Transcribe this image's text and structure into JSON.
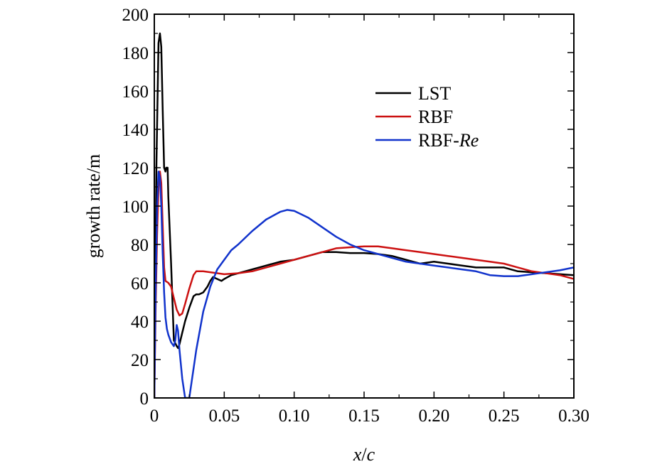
{
  "chart_data": {
    "type": "line",
    "title": "",
    "xlabel_parts": [
      {
        "text": "x",
        "italic": true
      },
      {
        "text": "/",
        "italic": false
      },
      {
        "text": "c",
        "italic": true
      }
    ],
    "ylabel": "growth rate/m",
    "xlim": [
      0,
      0.3
    ],
    "ylim": [
      0,
      200
    ],
    "xticks": [
      0,
      0.05,
      0.1,
      0.15,
      0.2,
      0.25,
      0.3
    ],
    "xtick_labels": [
      "0",
      "0.05",
      "0.10",
      "0.15",
      "0.20",
      "0.25",
      "0.30"
    ],
    "yticks": [
      0,
      20,
      40,
      60,
      80,
      100,
      120,
      140,
      160,
      180,
      200
    ],
    "ytick_labels": [
      "0",
      "20",
      "40",
      "60",
      "80",
      "100",
      "120",
      "140",
      "160",
      "180",
      "200"
    ],
    "grid": false,
    "legend_position": "top-right",
    "series": [
      {
        "name": "LST",
        "label_parts": [
          {
            "text": "LST",
            "italic": false
          }
        ],
        "color": "#000000",
        "x": [
          0.0,
          0.0015,
          0.003,
          0.004,
          0.005,
          0.006,
          0.007,
          0.008,
          0.0085,
          0.0095,
          0.01,
          0.012,
          0.014,
          0.016,
          0.017,
          0.018,
          0.02,
          0.022,
          0.025,
          0.028,
          0.03,
          0.032,
          0.035,
          0.038,
          0.04,
          0.042,
          0.045,
          0.048,
          0.05,
          0.055,
          0.06,
          0.07,
          0.08,
          0.09,
          0.1,
          0.11,
          0.12,
          0.13,
          0.14,
          0.15,
          0.16,
          0.17,
          0.18,
          0.19,
          0.2,
          0.21,
          0.22,
          0.23,
          0.24,
          0.25,
          0.26,
          0.27,
          0.28,
          0.29,
          0.3
        ],
        "y": [
          0,
          120,
          185,
          190,
          183,
          150,
          120,
          118,
          120,
          120,
          105,
          70,
          30,
          27,
          26,
          28,
          34,
          40,
          47,
          53,
          54,
          54,
          55,
          58,
          61,
          63,
          62,
          61,
          62,
          64,
          65,
          67,
          69,
          71,
          72,
          74,
          76,
          76,
          75.5,
          75.5,
          75,
          74,
          72,
          70,
          71,
          70,
          69,
          68,
          68,
          68,
          66,
          65.5,
          65,
          64.5,
          64
        ]
      },
      {
        "name": "RBF",
        "label_parts": [
          {
            "text": "RBF",
            "italic": false
          }
        ],
        "color": "#cc1111",
        "x": [
          0.0,
          0.001,
          0.002,
          0.003,
          0.004,
          0.005,
          0.006,
          0.007,
          0.008,
          0.01,
          0.012,
          0.014,
          0.016,
          0.018,
          0.02,
          0.022,
          0.025,
          0.028,
          0.03,
          0.032,
          0.035,
          0.04,
          0.045,
          0.05,
          0.06,
          0.07,
          0.08,
          0.09,
          0.1,
          0.11,
          0.12,
          0.13,
          0.14,
          0.15,
          0.16,
          0.17,
          0.18,
          0.19,
          0.2,
          0.21,
          0.22,
          0.23,
          0.24,
          0.25,
          0.26,
          0.27,
          0.28,
          0.29,
          0.3
        ],
        "y": [
          0,
          50,
          85,
          110,
          118,
          112,
          90,
          68,
          61,
          60,
          58,
          52,
          46,
          43,
          44,
          49,
          57,
          64,
          66,
          66,
          66,
          65.5,
          65,
          64.5,
          65,
          66,
          68,
          70,
          72,
          74,
          76,
          78,
          78.5,
          79,
          79,
          78,
          77,
          76,
          75,
          74,
          73,
          72,
          71,
          70,
          68,
          66,
          65,
          64,
          62
        ]
      },
      {
        "name": "RBF-Re",
        "label_parts": [
          {
            "text": "RBF-",
            "italic": false
          },
          {
            "text": "Re",
            "italic": true
          }
        ],
        "color": "#1133cc",
        "x": [
          0.0,
          0.001,
          0.002,
          0.003,
          0.004,
          0.005,
          0.006,
          0.007,
          0.008,
          0.009,
          0.01,
          0.012,
          0.014,
          0.015,
          0.016,
          0.017,
          0.018,
          0.02,
          0.022,
          0.023,
          0.025,
          0.027,
          0.03,
          0.035,
          0.04,
          0.045,
          0.05,
          0.055,
          0.06,
          0.07,
          0.08,
          0.09,
          0.095,
          0.1,
          0.11,
          0.12,
          0.13,
          0.14,
          0.15,
          0.16,
          0.17,
          0.18,
          0.19,
          0.2,
          0.21,
          0.22,
          0.23,
          0.24,
          0.25,
          0.26,
          0.27,
          0.28,
          0.29,
          0.3
        ],
        "y": [
          0,
          60,
          100,
          118,
          115,
          100,
          75,
          55,
          42,
          36,
          33,
          29,
          27,
          30,
          38,
          35,
          25,
          10,
          0,
          0,
          0,
          10,
          25,
          45,
          58,
          67,
          72,
          77,
          80,
          87,
          93,
          97,
          98,
          97.5,
          94,
          89,
          84,
          80,
          77,
          75,
          73,
          71,
          70,
          69,
          68,
          67,
          66,
          64,
          63.5,
          63.5,
          64.5,
          65.5,
          66.5,
          68
        ]
      }
    ]
  }
}
